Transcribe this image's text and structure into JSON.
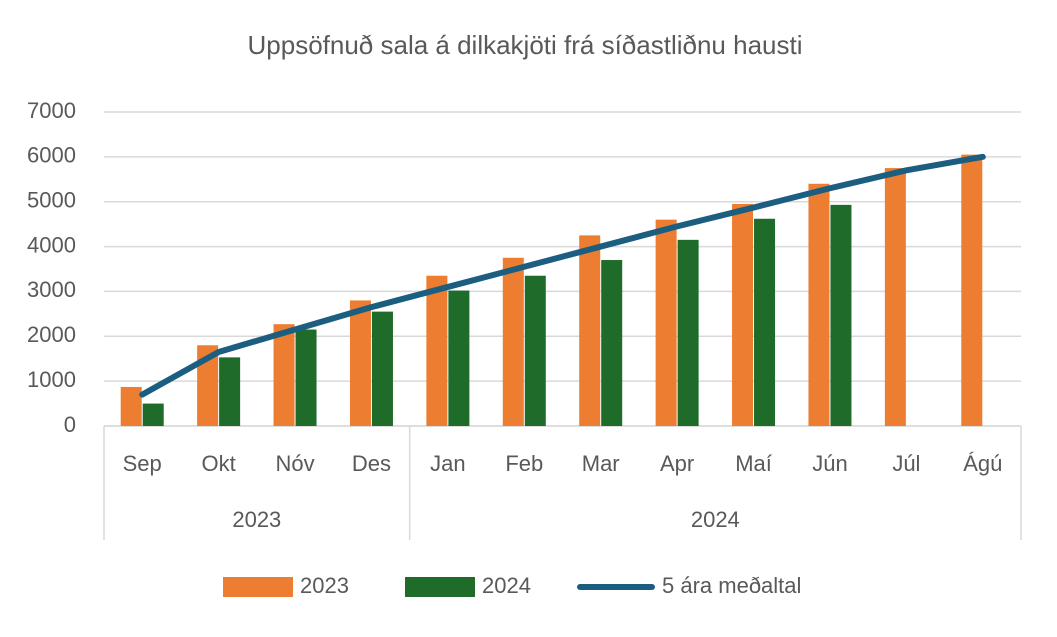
{
  "chart_data": {
    "type": "bar",
    "title": "Uppsöfnuð sala á dilkakjöti frá síðastliðnu hausti",
    "categories": [
      "Sep",
      "Okt",
      "Nóv",
      "Des",
      "Jan",
      "Feb",
      "Mar",
      "Apr",
      "Maí",
      "Jún",
      "Júl",
      "Ágú"
    ],
    "category_groups": [
      "2023",
      "2023",
      "2023",
      "2023",
      "2024",
      "2024",
      "2024",
      "2024",
      "2024",
      "2024",
      "2024",
      "2024"
    ],
    "series": [
      {
        "name": "2023",
        "type": "bar",
        "color": "#ed7d31",
        "values": [
          870,
          1800,
          2270,
          2800,
          3350,
          3750,
          4250,
          4600,
          4950,
          5400,
          5750,
          6050
        ]
      },
      {
        "name": "2024",
        "type": "bar",
        "color": "#1e6b2a",
        "values": [
          500,
          1530,
          2150,
          2550,
          3020,
          3350,
          3700,
          4150,
          4620,
          4930,
          null,
          null
        ]
      },
      {
        "name": "5 ára meðaltal",
        "type": "line",
        "color": "#1b5e80",
        "values": [
          700,
          1650,
          2150,
          2650,
          3100,
          3550,
          4000,
          4450,
          4870,
          5300,
          5700,
          6000
        ]
      }
    ],
    "ylim": [
      0,
      7000
    ],
    "yticks": [
      0,
      1000,
      2000,
      3000,
      4000,
      5000,
      6000,
      7000
    ],
    "grid": true,
    "legend": "bottom"
  }
}
